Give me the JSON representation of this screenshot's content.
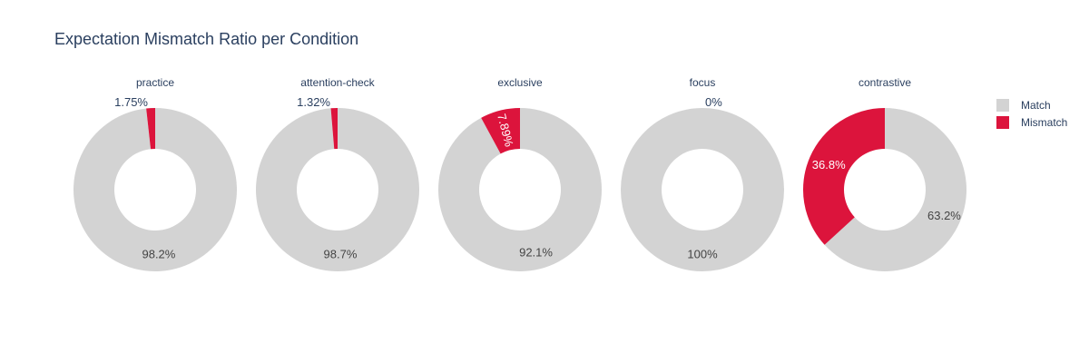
{
  "colors": {
    "match": "#d3d3d3",
    "mismatch": "#dc143c",
    "text": "#2a3f5f"
  },
  "chart_data": {
    "type": "pie",
    "title": "Expectation Mismatch Ratio per Condition",
    "legend": {
      "placement": "right",
      "entries": [
        "Match",
        "Mismatch"
      ]
    },
    "charts": [
      {
        "name": "practice",
        "values": {
          "Match": 98.25,
          "Mismatch": 1.75
        },
        "labels": {
          "Match": "98.2%",
          "Mismatch": "1.75%"
        }
      },
      {
        "name": "attention-check",
        "values": {
          "Match": 98.68,
          "Mismatch": 1.32
        },
        "labels": {
          "Match": "98.7%",
          "Mismatch": "1.32%"
        }
      },
      {
        "name": "exclusive",
        "values": {
          "Match": 92.11,
          "Mismatch": 7.89
        },
        "labels": {
          "Match": "92.1%",
          "Mismatch": "7.89%"
        }
      },
      {
        "name": "focus",
        "values": {
          "Match": 100,
          "Mismatch": 0
        },
        "labels": {
          "Match": "100%",
          "Mismatch": "0%"
        }
      },
      {
        "name": "contrastive",
        "values": {
          "Match": 63.2,
          "Mismatch": 36.8
        },
        "labels": {
          "Match": "63.2%",
          "Mismatch": "36.8%"
        }
      }
    ]
  }
}
